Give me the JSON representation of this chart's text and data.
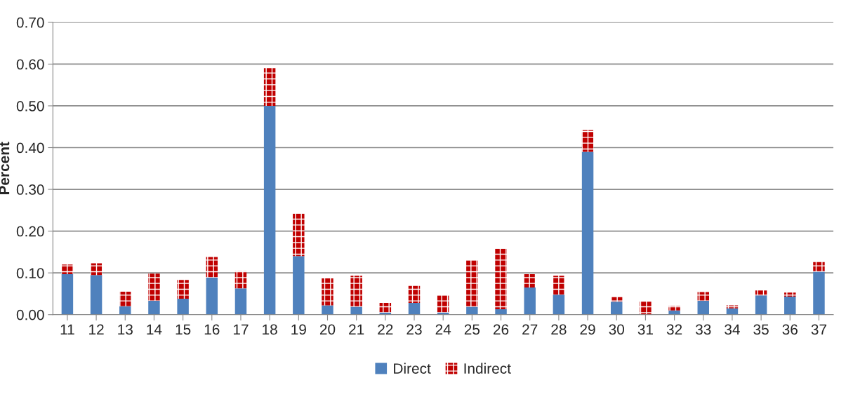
{
  "chart_data": {
    "type": "bar",
    "stacked": true,
    "ylabel": "Percent",
    "categories": [
      "11",
      "12",
      "13",
      "14",
      "15",
      "16",
      "17",
      "18",
      "19",
      "20",
      "21",
      "22",
      "23",
      "24",
      "25",
      "26",
      "27",
      "28",
      "29",
      "30",
      "31",
      "32",
      "33",
      "34",
      "35",
      "36",
      "37"
    ],
    "series": [
      {
        "name": "Direct",
        "color": "#4f81bd",
        "values": [
          0.097,
          0.095,
          0.02,
          0.033,
          0.038,
          0.089,
          0.063,
          0.5,
          0.14,
          0.022,
          0.019,
          0.005,
          0.028,
          0.005,
          0.019,
          0.013,
          0.065,
          0.048,
          0.39,
          0.031,
          null,
          0.01,
          0.033,
          0.015,
          0.046,
          0.043,
          0.103
        ]
      },
      {
        "name": "Indirect",
        "color": "#c00000",
        "values": [
          0.023,
          0.028,
          0.035,
          0.065,
          0.045,
          0.049,
          0.041,
          0.09,
          0.102,
          0.065,
          0.074,
          0.023,
          0.041,
          0.041,
          0.111,
          0.145,
          0.032,
          0.045,
          0.052,
          0.011,
          0.031,
          0.011,
          0.021,
          0.007,
          0.012,
          0.01,
          0.023
        ]
      }
    ],
    "ylim": [
      0,
      0.7
    ],
    "yticks": [
      {
        "value": 0,
        "label": "0.00"
      },
      {
        "value": 0.1,
        "label": "0.10"
      },
      {
        "value": 0.2,
        "label": "0.20"
      },
      {
        "value": 0.3,
        "label": "0.30"
      },
      {
        "value": 0.4,
        "label": "0.40"
      },
      {
        "value": 0.5,
        "label": "0.50"
      },
      {
        "value": 0.6,
        "label": "0.60"
      },
      {
        "value": 0.7,
        "label": "0.70"
      }
    ],
    "grid": "y",
    "legend": "bottom"
  }
}
